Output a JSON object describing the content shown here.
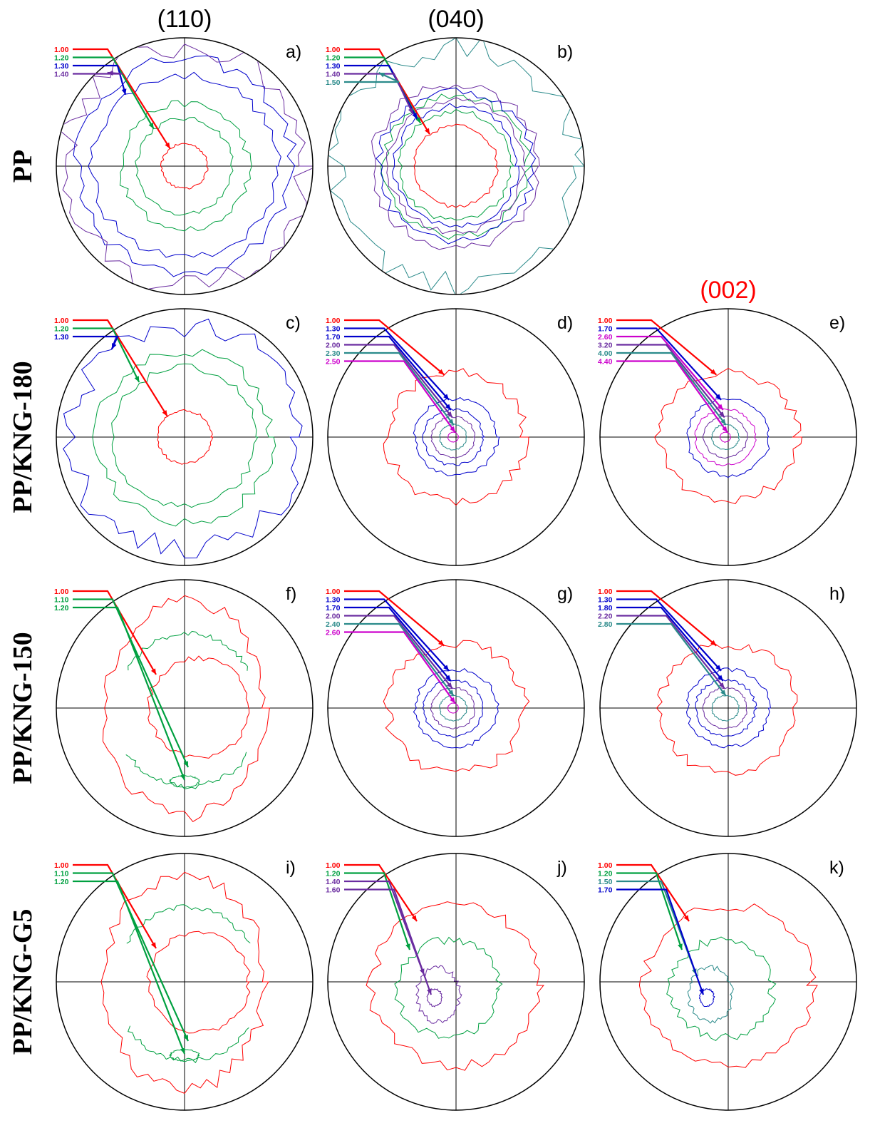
{
  "column_headers": [
    {
      "label": "(110)",
      "color": "#000000"
    },
    {
      "label": "(040)",
      "color": "#000000"
    },
    {
      "label": "(002)",
      "color": "#ff0000"
    }
  ],
  "row_labels": [
    "PP",
    "PP/KNG-180",
    "PP/KNG-150",
    "PP/KNG-G5"
  ],
  "level_colors": {
    "1.00": "#ff0000",
    "1.10": "#00a040",
    "1.20": "#00a040",
    "1.30": "#0000cc",
    "1.40": "#6a2ca0",
    "1.50": "#2a8a8a",
    "1.60": "#6a2ca0",
    "1.70": "#0000cc",
    "1.80": "#0000cc",
    "2.00": "#6a2ca0",
    "2.20": "#6a2ca0",
    "2.30": "#2a8a8a",
    "2.40": "#2a8a8a",
    "2.50": "#cc00cc",
    "2.60": "#cc00cc",
    "2.80": "#2a8a8a",
    "3.20": "#6a2ca0",
    "4.00": "#2a8a8a",
    "4.40": "#cc00cc"
  },
  "panels": [
    {
      "letter": "a)",
      "col": 0,
      "row": 0,
      "legend": [
        "1.00",
        "1.20",
        "1.30",
        "1.40"
      ],
      "pattern": "ring"
    },
    {
      "letter": "b)",
      "col": 1,
      "row": 0,
      "legend": [
        "1.00",
        "1.20",
        "1.30",
        "1.40",
        "1.50"
      ],
      "pattern": "ring"
    },
    {
      "letter": "c)",
      "col": 0,
      "row": 1,
      "legend": [
        "1.00",
        "1.20",
        "1.30"
      ],
      "pattern": "ring"
    },
    {
      "letter": "d)",
      "col": 1,
      "row": 1,
      "legend": [
        "1.00",
        "1.30",
        "1.70",
        "2.00",
        "2.30",
        "2.50"
      ],
      "pattern": "center"
    },
    {
      "letter": "e)",
      "col": 2,
      "row": 1,
      "legend": [
        "1.00",
        "1.70",
        "2.60",
        "3.20",
        "4.00",
        "4.40"
      ],
      "pattern": "center"
    },
    {
      "letter": "f)",
      "col": 0,
      "row": 2,
      "legend": [
        "1.00",
        "1.10",
        "1.20"
      ],
      "pattern": "arcs"
    },
    {
      "letter": "g)",
      "col": 1,
      "row": 2,
      "legend": [
        "1.00",
        "1.30",
        "1.70",
        "2.00",
        "2.40",
        "2.60"
      ],
      "pattern": "center"
    },
    {
      "letter": "h)",
      "col": 2,
      "row": 2,
      "legend": [
        "1.00",
        "1.30",
        "1.80",
        "2.20",
        "2.80"
      ],
      "pattern": "center"
    },
    {
      "letter": "i)",
      "col": 0,
      "row": 3,
      "legend": [
        "1.00",
        "1.10",
        "1.20"
      ],
      "pattern": "arcs"
    },
    {
      "letter": "j)",
      "col": 1,
      "row": 3,
      "legend": [
        "1.00",
        "1.20",
        "1.40",
        "1.60"
      ],
      "pattern": "offcenter"
    },
    {
      "letter": "k)",
      "col": 2,
      "row": 3,
      "legend": [
        "1.00",
        "1.20",
        "1.50",
        "1.70"
      ],
      "pattern": "offcenter"
    }
  ]
}
